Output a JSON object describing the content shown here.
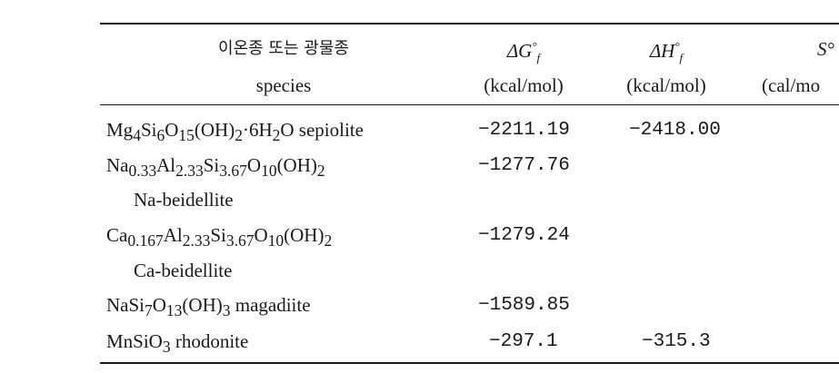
{
  "header": {
    "species_ko": "이온종 또는 광물종",
    "species_en": "species",
    "col_g_symbol": "ΔG°f",
    "col_h_symbol": "ΔH°f",
    "col_s_symbol": "S°",
    "col_g_unit": "(kcal/mol)",
    "col_h_unit": "(kcal/mol)",
    "col_s_unit": "(cal/mo"
  },
  "rows": [
    {
      "formula_html": "Mg<sub>4</sub>Si<sub>6</sub>O<sub>15</sub>(OH)<sub>2</sub>·6H<sub>2</sub>O",
      "name": "sepiolite",
      "dG": "−2211.19",
      "dH": "−2418.00"
    },
    {
      "formula_html": "Na<sub>0.33</sub>Al<sub>2.33</sub>Si<sub>3.67</sub>O<sub>10</sub>(OH)<sub>2</sub>",
      "name": "Na-beidellite",
      "dG": "−1277.76",
      "dH": ""
    },
    {
      "formula_html": "Ca<sub>0.167</sub>Al<sub>2.33</sub>Si<sub>3.67</sub>O<sub>10</sub>(OH)<sub>2</sub>",
      "name": "Ca-beidellite",
      "dG": "−1279.24",
      "dH": ""
    },
    {
      "formula_html": "NaSi<sub>7</sub>O<sub>13</sub>(OH)<sub>3</sub>",
      "name": "magadiite",
      "dG": "−1589.85",
      "dH": ""
    },
    {
      "formula_html": "MnSiO<sub>3</sub>",
      "name": "rhodonite",
      "dG": "−297.1",
      "dH": "−315.3"
    }
  ]
}
